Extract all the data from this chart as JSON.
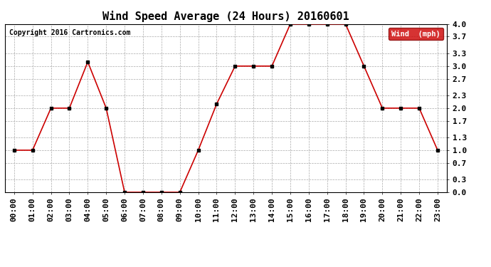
{
  "title": "Wind Speed Average (24 Hours) 20160601",
  "copyright": "Copyright 2016 Cartronics.com",
  "legend_label": "Wind  (mph)",
  "x_labels": [
    "00:00",
    "01:00",
    "02:00",
    "03:00",
    "04:00",
    "05:00",
    "06:00",
    "07:00",
    "08:00",
    "09:00",
    "10:00",
    "11:00",
    "12:00",
    "13:00",
    "14:00",
    "15:00",
    "16:00",
    "17:00",
    "18:00",
    "19:00",
    "20:00",
    "21:00",
    "22:00",
    "23:00"
  ],
  "y_values": [
    1.0,
    1.0,
    2.0,
    2.0,
    3.1,
    2.0,
    0.0,
    0.0,
    0.0,
    0.0,
    1.0,
    2.1,
    3.0,
    3.0,
    3.0,
    4.0,
    4.0,
    4.0,
    4.0,
    3.0,
    2.0,
    2.0,
    2.0,
    1.0
  ],
  "y_ticks": [
    0.0,
    0.3,
    0.7,
    1.0,
    1.3,
    1.7,
    2.0,
    2.3,
    2.7,
    3.0,
    3.3,
    3.7,
    4.0
  ],
  "y_tick_labels": [
    "0.0",
    "0.3",
    "0.7",
    "1.0",
    "1.3",
    "1.7",
    "2.0",
    "2.3",
    "2.7",
    "3.0",
    "3.3",
    "3.7",
    "4.0"
  ],
  "ylim": [
    0.0,
    4.0
  ],
  "line_color": "#cc0000",
  "marker_color": "#000000",
  "title_fontsize": 11,
  "bg_color": "#ffffff",
  "grid_color": "#aaaaaa",
  "legend_bg": "#cc0000",
  "legend_text_color": "#ffffff",
  "copyright_fontsize": 7,
  "tick_fontsize": 8
}
